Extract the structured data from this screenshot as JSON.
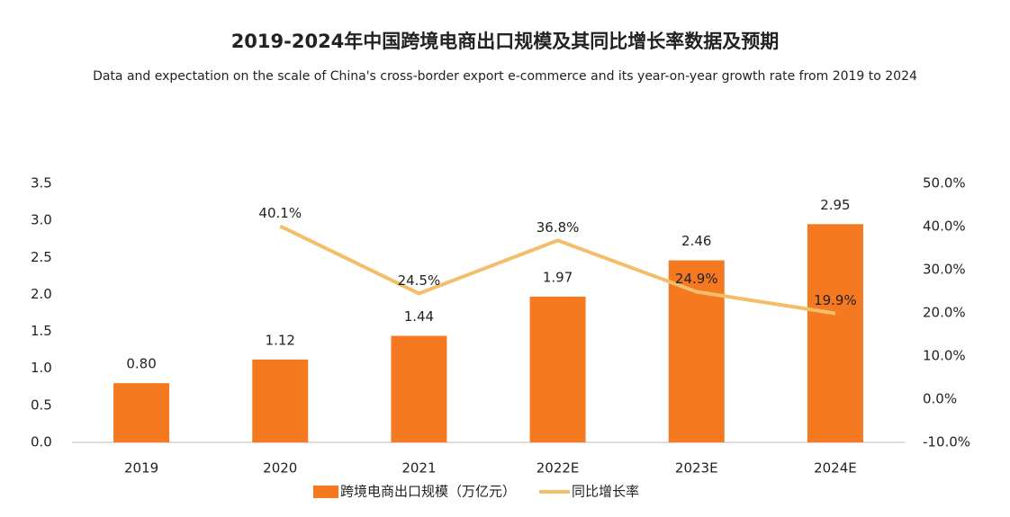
{
  "chart_data": {
    "type": "bar",
    "title": "2019-2024年中国跨境电商出口规模及其同比增长率数据及预期",
    "subtitle": "Data and expectation on the scale of China's cross-border export e-commerce and its year-on-year growth rate from 2019 to 2024",
    "categories": [
      "2019",
      "2020",
      "2021",
      "2022E",
      "2023E",
      "2024E"
    ],
    "series": [
      {
        "name": "跨境电商出口规模（万亿元）",
        "type": "bar",
        "color": "#f47920",
        "values": [
          0.8,
          1.12,
          1.44,
          1.97,
          2.46,
          2.95
        ],
        "value_labels": [
          "0.80",
          "1.12",
          "1.44",
          "1.97",
          "2.46",
          "2.95"
        ]
      },
      {
        "name": "同比增长率",
        "type": "line",
        "axis": "y2",
        "color": "#f2be6a",
        "values": [
          null,
          40.1,
          24.5,
          36.8,
          24.9,
          19.9
        ],
        "value_labels": [
          null,
          "40.1%",
          "24.5%",
          "36.8%",
          "24.9%",
          "19.9%"
        ]
      }
    ],
    "ylim": [
      0,
      3.5
    ],
    "yticks": [
      {
        "value": 0,
        "label": "0.0"
      },
      0.5,
      {
        "value": 1,
        "label": "1.0"
      },
      1.5,
      {
        "value": 2,
        "label": "2.0"
      },
      2.5,
      {
        "value": 3,
        "label": "3.0"
      },
      3.5
    ],
    "y2lim": [
      -10,
      50
    ],
    "y2ticks": [
      {
        "value": -10,
        "label": "-10.0%"
      },
      {
        "value": 0,
        "label": "0.0%"
      },
      {
        "value": 10,
        "label": "10.0%"
      },
      {
        "value": 20,
        "label": "20.0%"
      },
      {
        "value": 30,
        "label": "30.0%"
      },
      {
        "value": 40,
        "label": "40.0%"
      },
      {
        "value": 50,
        "label": "50.0%"
      }
    ],
    "legend": "bottom"
  }
}
